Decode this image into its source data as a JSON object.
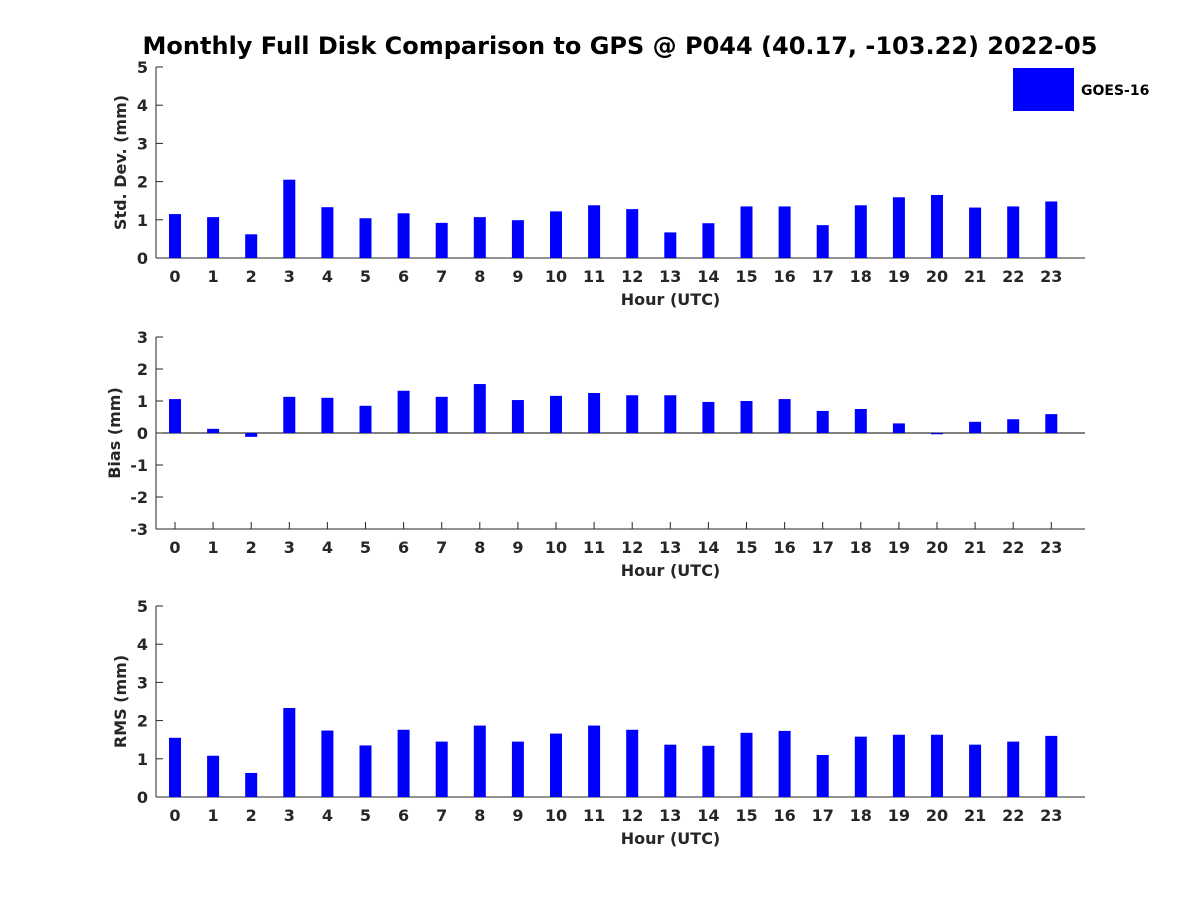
{
  "title": "Monthly Full Disk Comparison to GPS @ P044 (40.17, -103.22) 2022-05",
  "legend": {
    "label": "GOES-16",
    "color": "#0000ff"
  },
  "chart_data": [
    {
      "type": "bar",
      "xlabel": "Hour (UTC)",
      "ylabel": "Std. Dev. (mm)",
      "ylim": [
        0,
        5
      ],
      "yticks": [
        "0",
        "1",
        "2",
        "3",
        "4",
        "5"
      ],
      "categories": [
        "0",
        "1",
        "2",
        "3",
        "4",
        "5",
        "6",
        "7",
        "8",
        "9",
        "10",
        "11",
        "12",
        "13",
        "14",
        "15",
        "16",
        "17",
        "18",
        "19",
        "20",
        "21",
        "22",
        "23"
      ],
      "series": [
        {
          "name": "GOES-16",
          "values": [
            1.15,
            1.07,
            0.62,
            2.05,
            1.33,
            1.04,
            1.17,
            0.92,
            1.07,
            0.99,
            1.22,
            1.38,
            1.28,
            0.67,
            0.91,
            1.35,
            1.35,
            0.86,
            1.38,
            1.59,
            1.65,
            1.32,
            1.35,
            1.48
          ]
        }
      ],
      "grid": false,
      "legend_position": "top-right"
    },
    {
      "type": "bar",
      "xlabel": "Hour (UTC)",
      "ylabel": "Bias (mm)",
      "ylim": [
        -3,
        3
      ],
      "yticks": [
        "-3",
        "-2",
        "-1",
        "0",
        "1",
        "2",
        "3"
      ],
      "categories": [
        "0",
        "1",
        "2",
        "3",
        "4",
        "5",
        "6",
        "7",
        "8",
        "9",
        "10",
        "11",
        "12",
        "13",
        "14",
        "15",
        "16",
        "17",
        "18",
        "19",
        "20",
        "21",
        "22",
        "23"
      ],
      "series": [
        {
          "name": "GOES-16",
          "values": [
            1.06,
            0.13,
            -0.12,
            1.13,
            1.1,
            0.85,
            1.32,
            1.13,
            1.53,
            1.03,
            1.16,
            1.25,
            1.18,
            1.18,
            0.97,
            1.0,
            1.06,
            0.69,
            0.75,
            0.3,
            -0.04,
            0.35,
            0.43,
            0.59
          ]
        }
      ],
      "grid": false
    },
    {
      "type": "bar",
      "xlabel": "Hour (UTC)",
      "ylabel": "RMS (mm)",
      "ylim": [
        0,
        5
      ],
      "yticks": [
        "0",
        "1",
        "2",
        "3",
        "4",
        "5"
      ],
      "categories": [
        "0",
        "1",
        "2",
        "3",
        "4",
        "5",
        "6",
        "7",
        "8",
        "9",
        "10",
        "11",
        "12",
        "13",
        "14",
        "15",
        "16",
        "17",
        "18",
        "19",
        "20",
        "21",
        "22",
        "23"
      ],
      "series": [
        {
          "name": "GOES-16",
          "values": [
            1.55,
            1.08,
            0.63,
            2.33,
            1.74,
            1.35,
            1.76,
            1.45,
            1.87,
            1.45,
            1.66,
            1.87,
            1.76,
            1.37,
            1.34,
            1.68,
            1.73,
            1.1,
            1.58,
            1.63,
            1.63,
            1.37,
            1.45,
            1.6
          ]
        }
      ],
      "grid": false
    }
  ]
}
